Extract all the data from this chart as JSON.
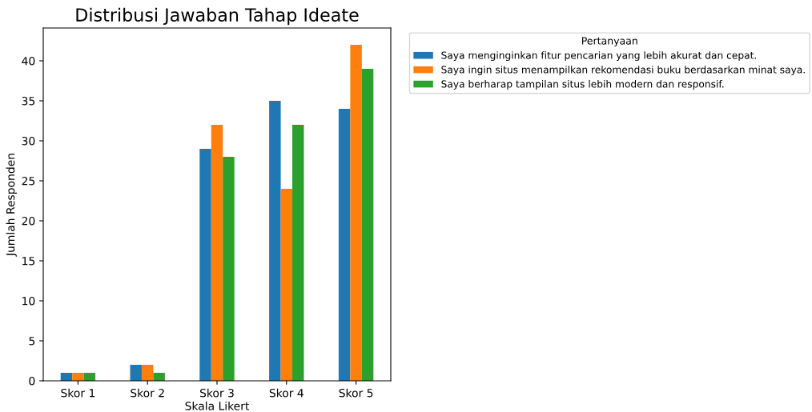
{
  "chart_data": {
    "type": "bar",
    "title": "Distribusi Jawaban Tahap Ideate",
    "xlabel": "Skala Likert",
    "ylabel": "Jumlah Responden",
    "legend_title": "Pertanyaan",
    "legend": "top right",
    "categories": [
      "Skor 1",
      "Skor 2",
      "Skor 3",
      "Skor 4",
      "Skor 5"
    ],
    "series": [
      {
        "name": "Saya menginginkan fitur pencarian yang lebih akurat dan cepat.",
        "color": "#1f77b4",
        "values": [
          1,
          2,
          29,
          35,
          34
        ]
      },
      {
        "name": "Saya ingin situs menampilkan rekomendasi buku berdasarkan minat saya.",
        "color": "#ff7f0e",
        "values": [
          1,
          2,
          32,
          24,
          42
        ]
      },
      {
        "name": "Saya berharap tampilan situs lebih modern dan responsif.",
        "color": "#2ca02c",
        "values": [
          1,
          1,
          28,
          32,
          39
        ]
      }
    ],
    "ylim": [
      0,
      44.1
    ],
    "yticks": [
      0,
      5,
      10,
      15,
      20,
      25,
      30,
      35,
      40
    ],
    "grid": false
  }
}
